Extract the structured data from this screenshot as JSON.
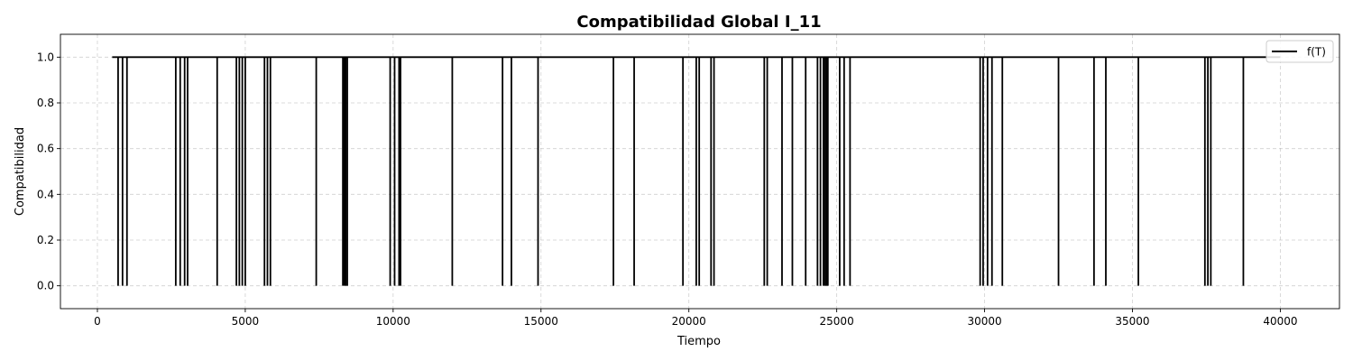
{
  "chart_data": {
    "type": "line",
    "title": "Compatibilidad Global I_11",
    "xlabel": "Tiempo",
    "ylabel": "Compatibilidad",
    "xlim": [
      -1250,
      42000
    ],
    "ylim": [
      -0.1,
      1.1
    ],
    "xticks": [
      0,
      5000,
      10000,
      15000,
      20000,
      25000,
      30000,
      35000,
      40000
    ],
    "xtick_labels": [
      "0",
      "5000",
      "10000",
      "15000",
      "20000",
      "25000",
      "30000",
      "35000",
      "40000"
    ],
    "yticks": [
      0.0,
      0.2,
      0.4,
      0.6,
      0.8,
      1.0
    ],
    "ytick_labels": [
      "0.0",
      "0.2",
      "0.4",
      "0.6",
      "0.8",
      "1.0"
    ],
    "grid": true,
    "legend_position": "upper right",
    "series": [
      {
        "name": "f(T)",
        "color": "#000000",
        "baseline": 1.0,
        "x_start": 500,
        "x_end": 40000,
        "drops_to": 0.0,
        "drop_times": [
          700,
          850,
          1000,
          2650,
          2800,
          2950,
          3050,
          4050,
          4700,
          4800,
          4900,
          5000,
          5650,
          5750,
          5850,
          7400,
          8300,
          8350,
          8400,
          8450,
          9900,
          10050,
          10200,
          10250,
          12000,
          13700,
          14000,
          14900,
          17450,
          18150,
          19800,
          20250,
          20350,
          20750,
          20850,
          22550,
          22650,
          23150,
          23500,
          23950,
          24350,
          24450,
          24550,
          24600,
          24650,
          24700,
          25100,
          25250,
          25450,
          29850,
          29950,
          30100,
          30250,
          30600,
          32500,
          33700,
          34100,
          35200,
          37450,
          37550,
          37650,
          38750
        ]
      }
    ]
  }
}
